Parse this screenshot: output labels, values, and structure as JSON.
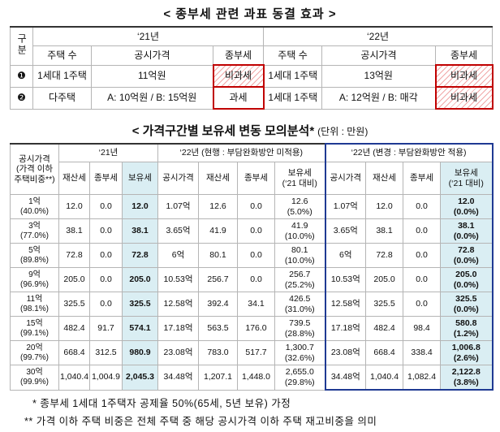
{
  "title1": "< 종부세 관련 과표 동결 효과 >",
  "table1": {
    "header_top": [
      "구분",
      "‘21년",
      "‘22년"
    ],
    "header_sub": [
      "주택 수",
      "공시가격",
      "종부세",
      "주택 수",
      "공시가격",
      "종부세"
    ],
    "rows": [
      [
        "❶",
        "1세대 1주택",
        "11억원",
        "비과세",
        "1세대 1주택",
        "13억원",
        "비과세"
      ],
      [
        "❷",
        "다주택",
        "A: 10억원 / B: 15억원",
        "과세",
        "1세대 1주택",
        "A: 12억원 / B: 매각",
        "비과세"
      ]
    ]
  },
  "title2": "< 가격구간별 보유세 변동 모의분석*",
  "unit": "(단위 : 만원)",
  "table2": {
    "header_top": [
      [
        "공시가격",
        "(가격 이하",
        "주택비중**)"
      ],
      "‘21년",
      "‘22년 (현행 : 부담완화방안 미적용)",
      "‘22년 (변경 : 부담완화방안 적용)"
    ],
    "header_sub": [
      "재산세",
      "종부세",
      "보유세",
      "공시가격",
      "재산세",
      "종부세",
      [
        "보유세",
        "(‘21 대비)"
      ],
      "공시가격",
      "재산세",
      "종부세",
      [
        "보유세",
        "(‘21 대비)"
      ]
    ],
    "rows": [
      [
        [
          "1억",
          "(40.0%)"
        ],
        "12.0",
        "0.0",
        "12.0",
        "1.07억",
        "12.6",
        "0.0",
        [
          "12.6",
          "(5.0%)"
        ],
        "1.07억",
        "12.0",
        "0.0",
        [
          "12.0",
          "(0.0%)"
        ]
      ],
      [
        [
          "3억",
          "(77.0%)"
        ],
        "38.1",
        "0.0",
        "38.1",
        "3.65억",
        "41.9",
        "0.0",
        [
          "41.9",
          "(10.0%)"
        ],
        "3.65억",
        "38.1",
        "0.0",
        [
          "38.1",
          "(0.0%)"
        ]
      ],
      [
        [
          "5억",
          "(89.8%)"
        ],
        "72.8",
        "0.0",
        "72.8",
        "6억",
        "80.1",
        "0.0",
        [
          "80.1",
          "(10.0%)"
        ],
        "6억",
        "72.8",
        "0.0",
        [
          "72.8",
          "(0.0%)"
        ]
      ],
      [
        [
          "9억",
          "(96.9%)"
        ],
        "205.0",
        "0.0",
        "205.0",
        "10.53억",
        "256.7",
        "0.0",
        [
          "256.7",
          "(25.2%)"
        ],
        "10.53억",
        "205.0",
        "0.0",
        [
          "205.0",
          "(0.0%)"
        ]
      ],
      [
        [
          "11억",
          "(98.1%)"
        ],
        "325.5",
        "0.0",
        "325.5",
        "12.58억",
        "392.4",
        "34.1",
        [
          "426.5",
          "(31.0%)"
        ],
        "12.58억",
        "325.5",
        "0.0",
        [
          "325.5",
          "(0.0%)"
        ]
      ],
      [
        [
          "15억",
          "(99.1%)"
        ],
        "482.4",
        "91.7",
        "574.1",
        "17.18억",
        "563.5",
        "176.0",
        [
          "739.5",
          "(28.8%)"
        ],
        "17.18억",
        "482.4",
        "98.4",
        [
          "580.8",
          "(1.2%)"
        ]
      ],
      [
        [
          "20억",
          "(99.7%)"
        ],
        "668.4",
        "312.5",
        "980.9",
        "23.08억",
        "783.0",
        "517.7",
        [
          "1,300.7",
          "(32.6%)"
        ],
        "23.08억",
        "668.4",
        "338.4",
        [
          "1,006.8",
          "(2.6%)"
        ]
      ],
      [
        [
          "30억",
          "(99.9%)"
        ],
        "1,040.4",
        "1,004.9",
        "2,045.3",
        "34.48억",
        "1,207.1",
        "1,448.0",
        [
          "2,655.0",
          "(29.8%)"
        ],
        "34.48억",
        "1,040.4",
        "1,082.4",
        [
          "2,122.8",
          "(3.8%)"
        ]
      ]
    ]
  },
  "footnotes": [
    "* 종부세 1세대 1주택자 공제율 50%(65세, 5년 보유) 가정",
    "** 가격 이하 주택 비중은 전체 주택 중 해당 공시가격 이하 주택 재고비중을 의미"
  ]
}
